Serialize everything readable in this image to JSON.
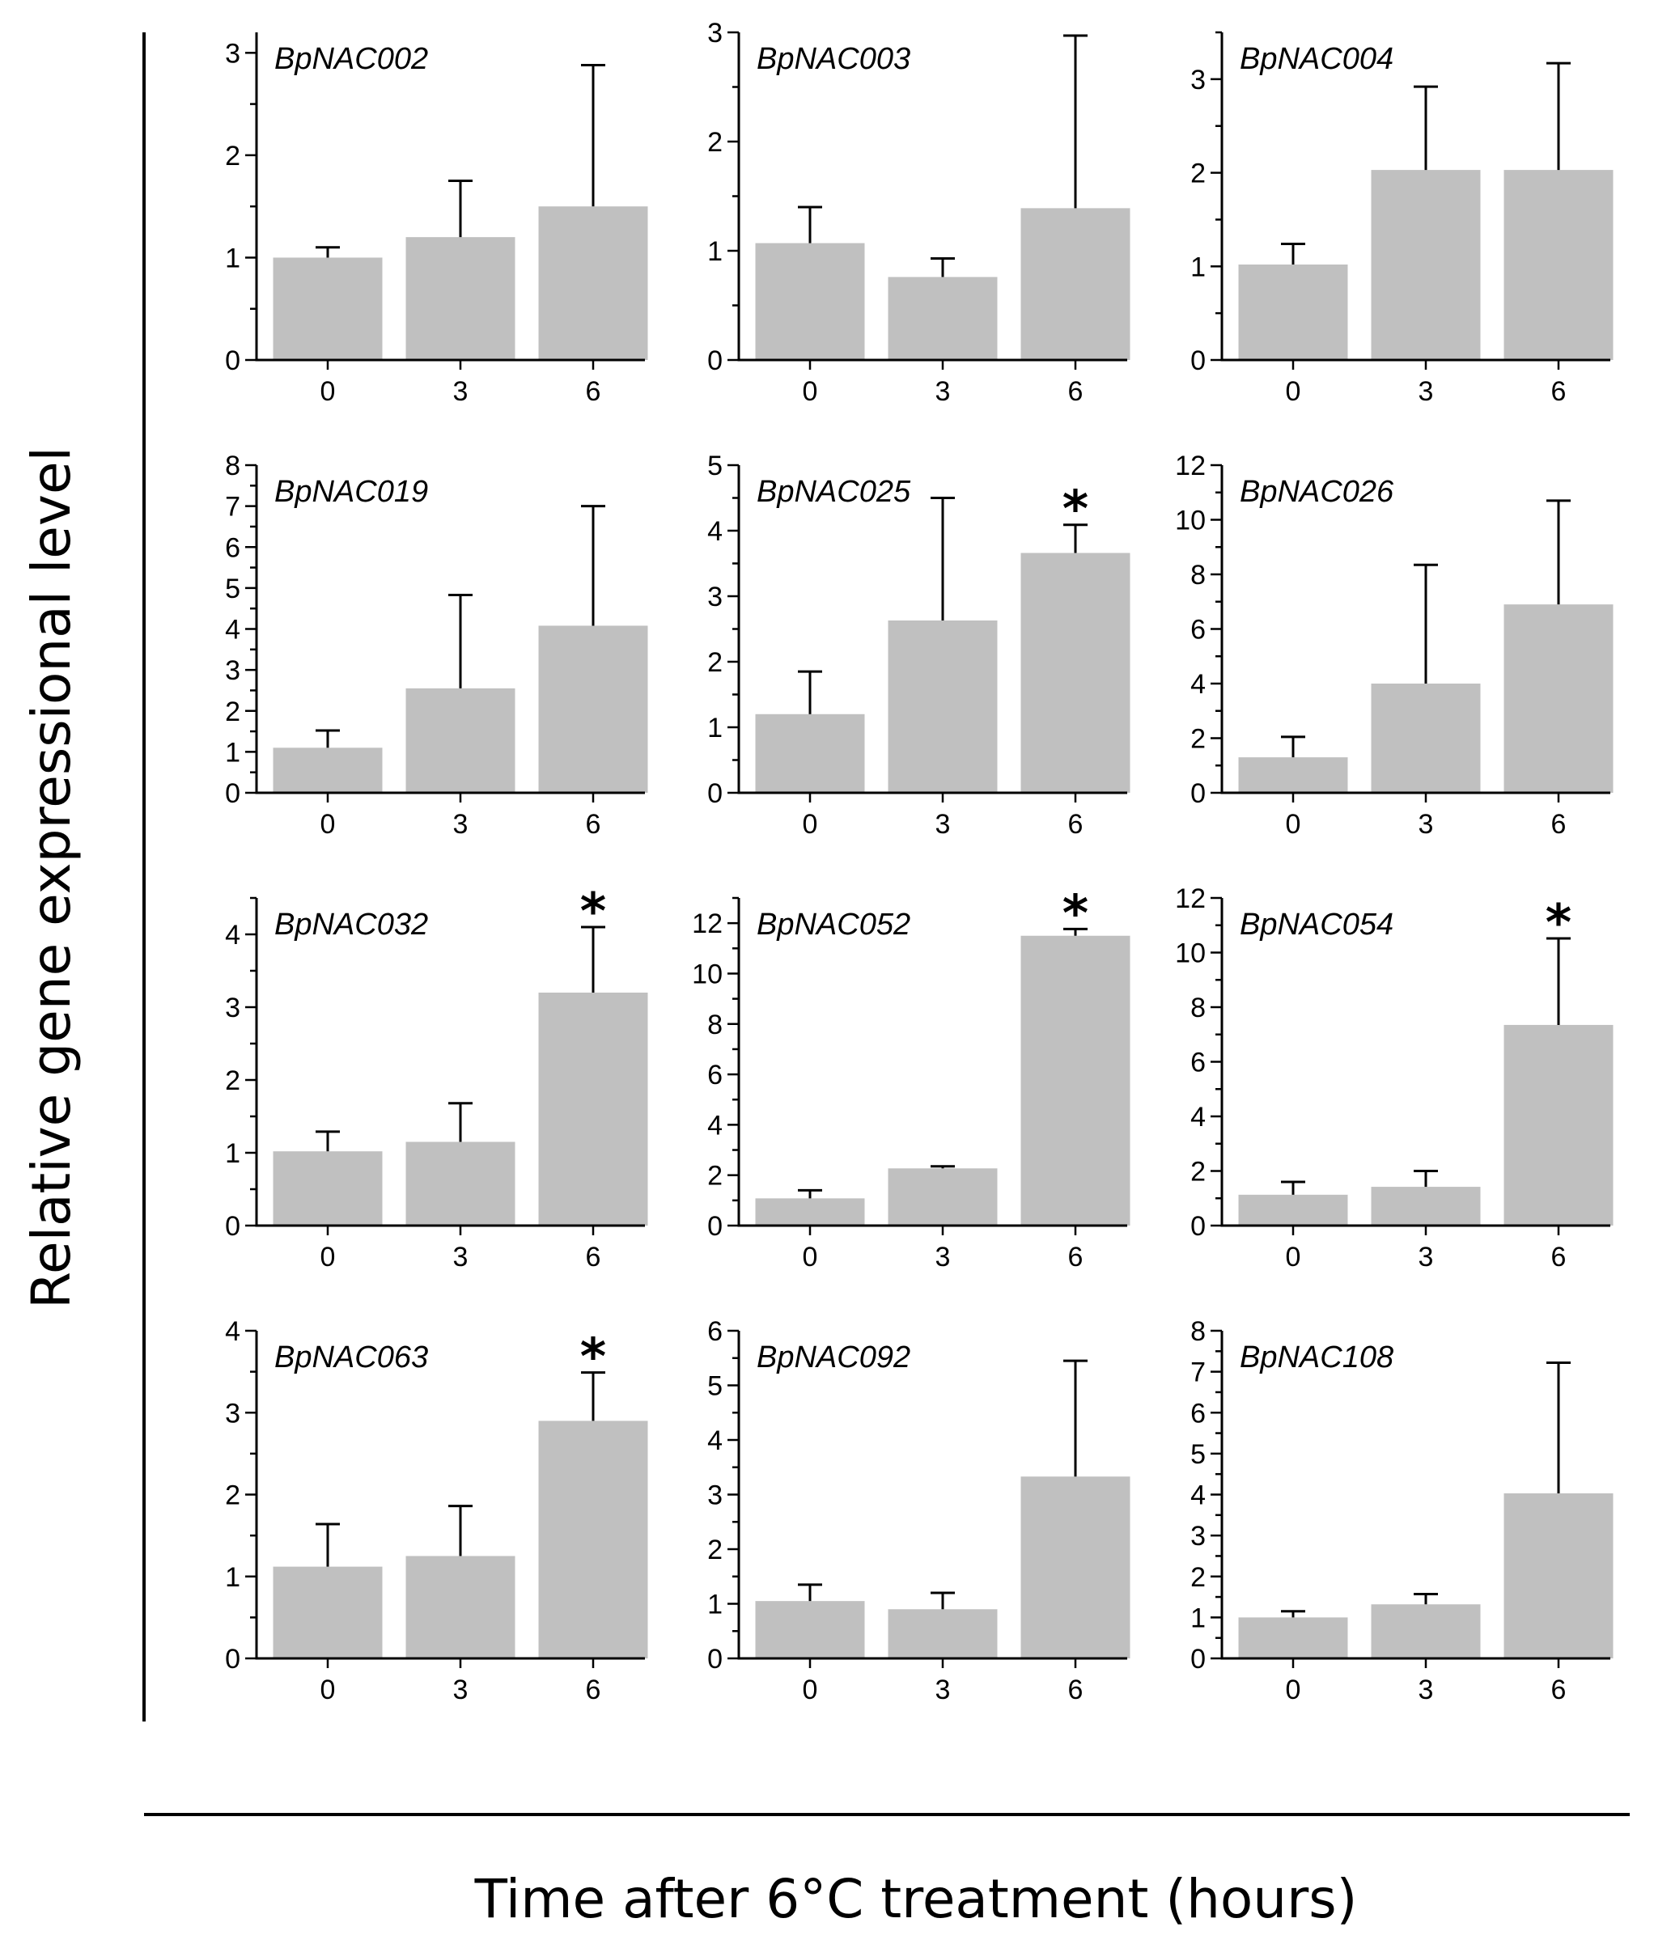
{
  "figure": {
    "ylabel": "Relative gene expressional level",
    "xlabel": "Time after 6°C treatment (hours)"
  },
  "colors": {
    "bar": "#c0c0c0",
    "axis": "#000000"
  },
  "chart_data": [
    {
      "type": "bar",
      "title": "BpNAC002",
      "categories": [
        "0",
        "3",
        "6"
      ],
      "values": [
        1.0,
        1.2,
        1.5
      ],
      "errors": [
        0.1,
        0.55,
        1.38
      ],
      "significant": [
        false,
        false,
        false
      ],
      "ylim": [
        0,
        3.2
      ],
      "yticks": [
        0,
        1,
        2,
        3
      ],
      "ylabels": [
        "0",
        "1",
        "2",
        "3"
      ],
      "minor": 0.5
    },
    {
      "type": "bar",
      "title": "BpNAC003",
      "categories": [
        "0",
        "3",
        "6"
      ],
      "values": [
        1.07,
        0.76,
        1.39
      ],
      "errors": [
        0.33,
        0.17,
        1.58
      ],
      "significant": [
        false,
        false,
        false
      ],
      "ylim": [
        0,
        3
      ],
      "yticks": [
        0,
        1,
        2,
        3
      ],
      "ylabels": [
        "0",
        "1",
        "2",
        "3"
      ],
      "minor": 0.5
    },
    {
      "type": "bar",
      "title": "BpNAC004",
      "categories": [
        "0",
        "3",
        "6"
      ],
      "values": [
        1.02,
        2.03,
        2.03
      ],
      "errors": [
        0.22,
        0.89,
        1.14
      ],
      "significant": [
        false,
        false,
        false
      ],
      "ylim": [
        0,
        3.5
      ],
      "yticks": [
        0,
        1,
        2,
        3
      ],
      "ylabels": [
        "0",
        "1",
        "2",
        "3"
      ],
      "minor": 0.5
    },
    {
      "type": "bar",
      "title": "BpNAC019",
      "categories": [
        "0",
        "3",
        "6"
      ],
      "values": [
        1.1,
        2.55,
        4.08
      ],
      "errors": [
        0.42,
        2.28,
        2.92
      ],
      "significant": [
        false,
        false,
        false
      ],
      "ylim": [
        0,
        8
      ],
      "yticks": [
        0,
        1,
        2,
        3,
        4,
        5,
        6,
        7,
        8
      ],
      "ylabels": [
        "0",
        "1",
        "2",
        "3",
        "4",
        "5",
        "6",
        "7",
        "8"
      ],
      "minor": 0.5
    },
    {
      "type": "bar",
      "title": "BpNAC025",
      "categories": [
        "0",
        "3",
        "6"
      ],
      "values": [
        1.2,
        2.63,
        3.66
      ],
      "errors": [
        0.65,
        1.87,
        0.43
      ],
      "significant": [
        false,
        false,
        true
      ],
      "ylim": [
        0,
        5
      ],
      "yticks": [
        0,
        1,
        2,
        3,
        4,
        5
      ],
      "ylabels": [
        "0",
        "1",
        "2",
        "3",
        "4",
        "5"
      ],
      "minor": 0.5
    },
    {
      "type": "bar",
      "title": "BpNAC026",
      "categories": [
        "0",
        "3",
        "6"
      ],
      "values": [
        1.3,
        4.0,
        6.9
      ],
      "errors": [
        0.75,
        4.35,
        3.8
      ],
      "significant": [
        false,
        false,
        false
      ],
      "ylim": [
        0,
        12
      ],
      "yticks": [
        0,
        2,
        4,
        6,
        8,
        10,
        12
      ],
      "ylabels": [
        "0",
        "2",
        "4",
        "6",
        "8",
        "10",
        "12"
      ],
      "minor": 1
    },
    {
      "type": "bar",
      "title": "BpNAC032",
      "categories": [
        "0",
        "3",
        "6"
      ],
      "values": [
        1.02,
        1.15,
        3.2
      ],
      "errors": [
        0.27,
        0.53,
        0.9
      ],
      "significant": [
        false,
        false,
        true
      ],
      "ylim": [
        0,
        4.5
      ],
      "yticks": [
        0,
        1,
        2,
        3,
        4
      ],
      "ylabels": [
        "0",
        "1",
        "2",
        "3",
        "4"
      ],
      "minor": 0.5
    },
    {
      "type": "bar",
      "title": "BpNAC052",
      "categories": [
        "0",
        "3",
        "6"
      ],
      "values": [
        1.08,
        2.27,
        11.5
      ],
      "errors": [
        0.32,
        0.08,
        0.27
      ],
      "significant": [
        false,
        false,
        true
      ],
      "ylim": [
        0,
        13
      ],
      "yticks": [
        0,
        2,
        4,
        6,
        8,
        10,
        12
      ],
      "ylabels": [
        "0",
        "2",
        "4",
        "6",
        "8",
        "10",
        "12"
      ],
      "minor": 1
    },
    {
      "type": "bar",
      "title": "BpNAC054",
      "categories": [
        "0",
        "3",
        "6"
      ],
      "values": [
        1.13,
        1.42,
        7.35
      ],
      "errors": [
        0.47,
        0.58,
        3.17
      ],
      "significant": [
        false,
        false,
        true
      ],
      "ylim": [
        0,
        12
      ],
      "yticks": [
        0,
        2,
        4,
        6,
        8,
        10,
        12
      ],
      "ylabels": [
        "0",
        "2",
        "4",
        "6",
        "8",
        "10",
        "12"
      ],
      "minor": 1
    },
    {
      "type": "bar",
      "title": "BpNAC063",
      "categories": [
        "0",
        "3",
        "6"
      ],
      "values": [
        1.12,
        1.25,
        2.9
      ],
      "errors": [
        0.52,
        0.61,
        0.59
      ],
      "significant": [
        false,
        false,
        true
      ],
      "ylim": [
        0,
        4
      ],
      "yticks": [
        0,
        1,
        2,
        3,
        4
      ],
      "ylabels": [
        "0",
        "1",
        "2",
        "3",
        "4"
      ],
      "minor": 0.5
    },
    {
      "type": "bar",
      "title": "BpNAC092",
      "categories": [
        "0",
        "3",
        "6"
      ],
      "values": [
        1.05,
        0.9,
        3.33
      ],
      "errors": [
        0.3,
        0.3,
        2.12
      ],
      "significant": [
        false,
        false,
        false
      ],
      "ylim": [
        0,
        6
      ],
      "yticks": [
        0,
        1,
        2,
        3,
        4,
        5,
        6
      ],
      "ylabels": [
        "0",
        "1",
        "2",
        "3",
        "4",
        "5",
        "6"
      ],
      "minor": 0.5
    },
    {
      "type": "bar",
      "title": "BpNAC108",
      "categories": [
        "0",
        "3",
        "6"
      ],
      "values": [
        1.0,
        1.32,
        4.03
      ],
      "errors": [
        0.15,
        0.25,
        3.19
      ],
      "significant": [
        false,
        false,
        false
      ],
      "ylim": [
        0,
        8
      ],
      "yticks": [
        0,
        1,
        2,
        3,
        4,
        5,
        6,
        7,
        8
      ],
      "ylabels": [
        "0",
        "1",
        "2",
        "3",
        "4",
        "5",
        "6",
        "7",
        "8"
      ],
      "minor": 0.5
    }
  ],
  "star_symbol": "*"
}
